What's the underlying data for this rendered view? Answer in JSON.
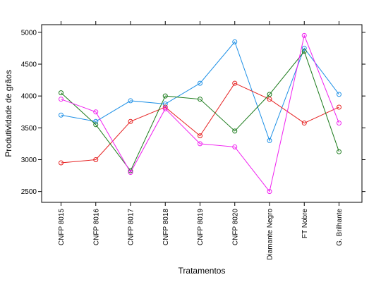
{
  "chart_data": {
    "type": "line",
    "xlabel": "Tratamentos",
    "ylabel": "Produtividade de grãos",
    "categories": [
      "CNFP 8015",
      "CNFP 8016",
      "CNFP 8017",
      "CNFP 8018",
      "CNFP 8019",
      "CNFP 8020",
      "Diamante Negro",
      "FT Nobre",
      "G. Brilhante"
    ],
    "y_ticks": [
      2500,
      3000,
      3500,
      4000,
      4500,
      5000
    ],
    "ylim": [
      2330,
      5120
    ],
    "grid": false,
    "legend": "none",
    "series": [
      {
        "color": "#1E90E6",
        "values": [
          3700,
          3600,
          3925,
          3875,
          4200,
          4850,
          3300,
          4750,
          4025
        ]
      },
      {
        "color": "#E62020",
        "values": [
          2950,
          3000,
          3600,
          3825,
          3375,
          4200,
          3950,
          3575,
          3825
        ]
      },
      {
        "color": "#1A7A1A",
        "values": [
          4050,
          3550,
          2825,
          4000,
          3950,
          3450,
          4025,
          4700,
          3125
        ]
      },
      {
        "color": "#F020F0",
        "values": [
          3950,
          3750,
          2800,
          3800,
          3250,
          3200,
          2500,
          4950,
          3575
        ]
      }
    ]
  }
}
